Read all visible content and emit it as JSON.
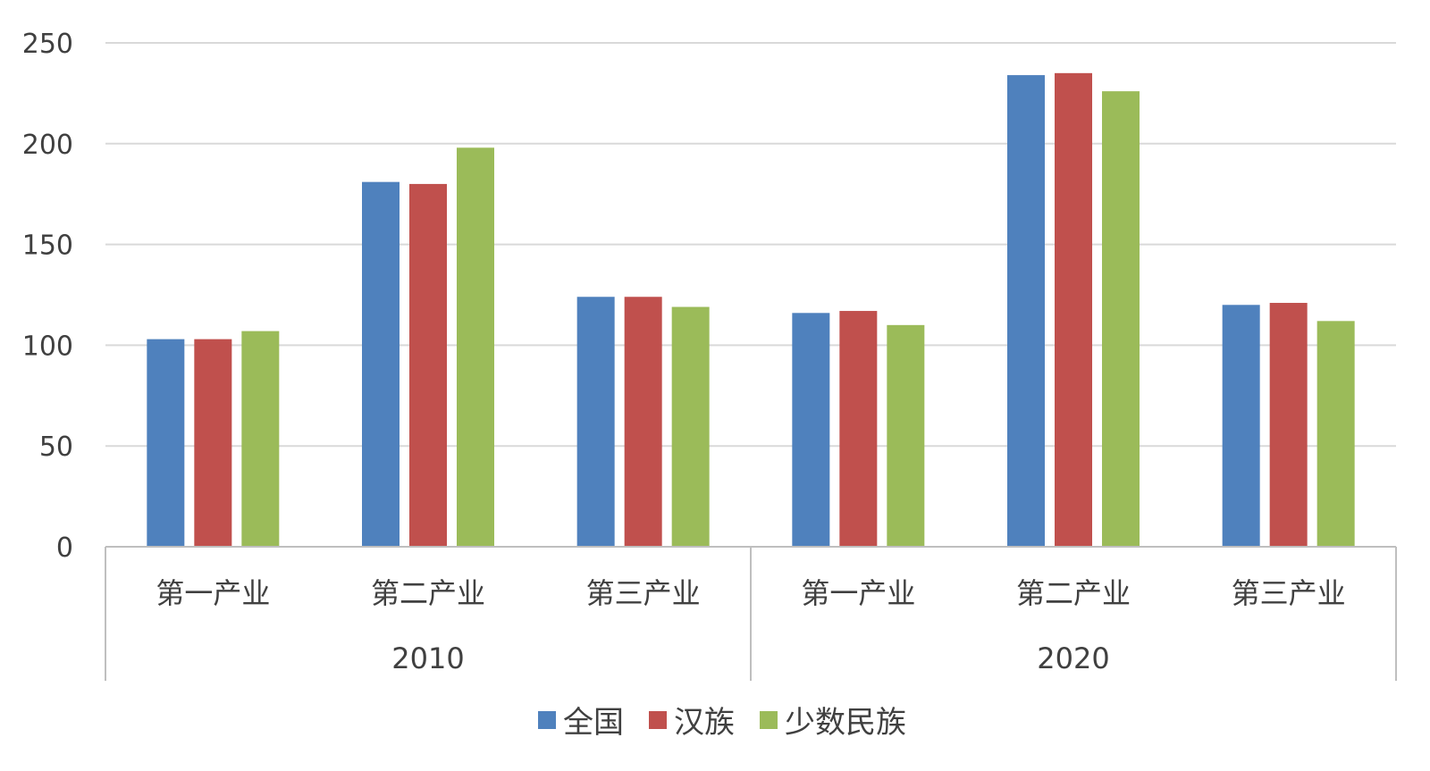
{
  "chart_data": {
    "type": "bar",
    "title": "",
    "xlabel": "",
    "ylabel": "",
    "ylim": [
      0,
      250
    ],
    "yticks": [
      0,
      50,
      100,
      150,
      200,
      250
    ],
    "grid": true,
    "legend_position": "bottom",
    "groups": [
      {
        "label": "2010",
        "categories": [
          "第一产业",
          "第二产业",
          "第三产业"
        ]
      },
      {
        "label": "2020",
        "categories": [
          "第一产业",
          "第二产业",
          "第三产业"
        ]
      }
    ],
    "series": [
      {
        "name": "全国",
        "color": "#4F81BD",
        "values": [
          103,
          181,
          124,
          116,
          234,
          120
        ]
      },
      {
        "name": "汉族",
        "color": "#C0504D",
        "values": [
          103,
          180,
          124,
          117,
          235,
          121
        ]
      },
      {
        "name": "少数民族",
        "color": "#9BBB59",
        "values": [
          107,
          198,
          119,
          110,
          226,
          112
        ]
      }
    ]
  },
  "colors": {
    "grid": "#d9d9d9",
    "axis": "#bfbfbf",
    "text": "#404040"
  }
}
